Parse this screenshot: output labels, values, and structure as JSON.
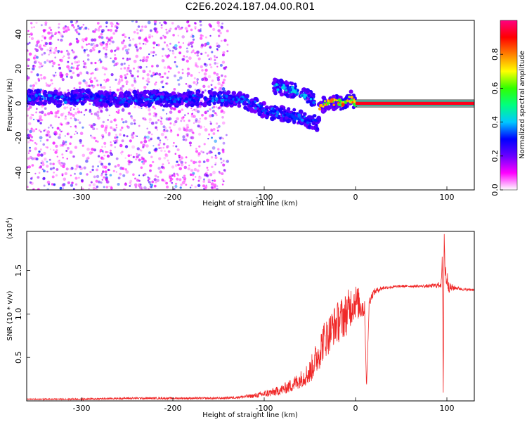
{
  "title": "C2E6.2024.187.04.00.R01",
  "colors": {
    "spectral_band": "#5a1fe6",
    "ridge": "#00d8c8",
    "snr_line": "#f02828",
    "axis": "#000000"
  },
  "chart_data": [
    {
      "type": "heatmap",
      "xlabel": "Height of straight line (km)",
      "ylabel": "Frequency (Hz)",
      "xlim": [
        -360,
        130
      ],
      "ylim": [
        -50,
        48
      ],
      "x_ticks": [
        -300,
        -200,
        -100,
        0,
        100
      ],
      "y_ticks": [
        -40,
        -20,
        0,
        20,
        40
      ],
      "colorbar": {
        "label": "Normalized spectral amplitude",
        "range": [
          0,
          1
        ],
        "ticks": [
          "0.0",
          "0.2",
          "0.4",
          "0.6",
          "0.8"
        ],
        "colormap": [
          "#ffffff",
          "#ff00ff",
          "#6a00ff",
          "#0000ff",
          "#00c8ff",
          "#00ff80",
          "#30ff00",
          "#ffff00",
          "#ff8000",
          "#ff0000",
          "#ff0080"
        ]
      },
      "features": [
        {
          "segment": "main-band",
          "x": [
            -360,
            -340,
            -320,
            -300,
            -280,
            -260,
            -240,
            -220,
            -200,
            -180,
            -160,
            -140,
            -125,
            -110,
            -100
          ],
          "y": [
            3,
            4,
            2,
            4,
            3,
            2,
            3,
            3,
            2,
            3,
            3,
            3,
            2,
            -1,
            -4
          ],
          "amplitude": 0.3
        },
        {
          "segment": "upper-branch",
          "x": [
            -90,
            -80,
            -70,
            -60,
            -50,
            -45
          ],
          "y": [
            10,
            9,
            8,
            6,
            3,
            1
          ],
          "amplitude": 0.35
        },
        {
          "segment": "lower-branch",
          "x": [
            -100,
            -90,
            -80,
            -70,
            -60,
            -50,
            -45,
            -40
          ],
          "y": [
            -4,
            -5,
            -6,
            -7,
            -8,
            -10,
            -11,
            -12
          ],
          "amplitude": 0.3
        },
        {
          "segment": "converging",
          "x": [
            -40,
            -30,
            -20,
            -10,
            -5,
            0
          ],
          "y": [
            -2,
            1,
            0,
            1,
            3,
            0
          ],
          "amplitude": 0.7
        },
        {
          "segment": "post-zero-line",
          "x": [
            0,
            20,
            40,
            60,
            80,
            100,
            130
          ],
          "y": [
            0,
            0,
            0,
            0,
            0,
            0,
            0
          ],
          "amplitude": 0.95
        }
      ]
    },
    {
      "type": "line",
      "xlabel": "Height of straight line (km)",
      "ylabel": "SNR (10 * v/v)",
      "multiplier": "(x10",
      "multiplier_exp": "4",
      "multiplier_close": ")",
      "xlim": [
        -360,
        130
      ],
      "ylim": [
        0,
        1.95
      ],
      "x_ticks": [
        -300,
        -200,
        -100,
        0,
        100
      ],
      "y_ticks": [
        0.5,
        1.0,
        1.5
      ],
      "series": [
        {
          "x": [
            -360,
            -300,
            -250,
            -200,
            -150,
            -130,
            -110,
            -100,
            -90,
            -80,
            -70,
            -60,
            -50,
            -45,
            -40,
            -35,
            -30,
            -25,
            -20,
            -15,
            -10,
            -5,
            0,
            5,
            10,
            12,
            15,
            20,
            25,
            30,
            40,
            50,
            60,
            70,
            80,
            90,
            94,
            95,
            96,
            97,
            98,
            100,
            103,
            110,
            120,
            130
          ],
          "y": [
            0.02,
            0.02,
            0.03,
            0.03,
            0.03,
            0.04,
            0.06,
            0.08,
            0.1,
            0.13,
            0.18,
            0.25,
            0.33,
            0.45,
            0.55,
            0.7,
            0.75,
            0.85,
            0.9,
            0.95,
            1.0,
            1.1,
            1.15,
            1.1,
            1.05,
            0.15,
            1.15,
            1.25,
            1.28,
            1.3,
            1.31,
            1.32,
            1.32,
            1.32,
            1.32,
            1.33,
            1.35,
            1.7,
            0.05,
            1.95,
            1.5,
            1.4,
            1.3,
            1.3,
            1.28,
            1.28
          ],
          "noise": [
            0.005,
            0.01,
            0.012,
            0.012,
            0.012,
            0.015,
            0.025,
            0.04,
            0.05,
            0.06,
            0.08,
            0.1,
            0.14,
            0.18,
            0.2,
            0.22,
            0.22,
            0.22,
            0.24,
            0.25,
            0.25,
            0.24,
            0.2,
            0.18,
            0.1,
            0.0,
            0.06,
            0.04,
            0.03,
            0.02,
            0.015,
            0.015,
            0.015,
            0.015,
            0.02,
            0.03,
            0.05,
            0.0,
            0.0,
            0.0,
            0.15,
            0.12,
            0.06,
            0.02,
            0.015,
            0.015
          ]
        }
      ]
    }
  ]
}
